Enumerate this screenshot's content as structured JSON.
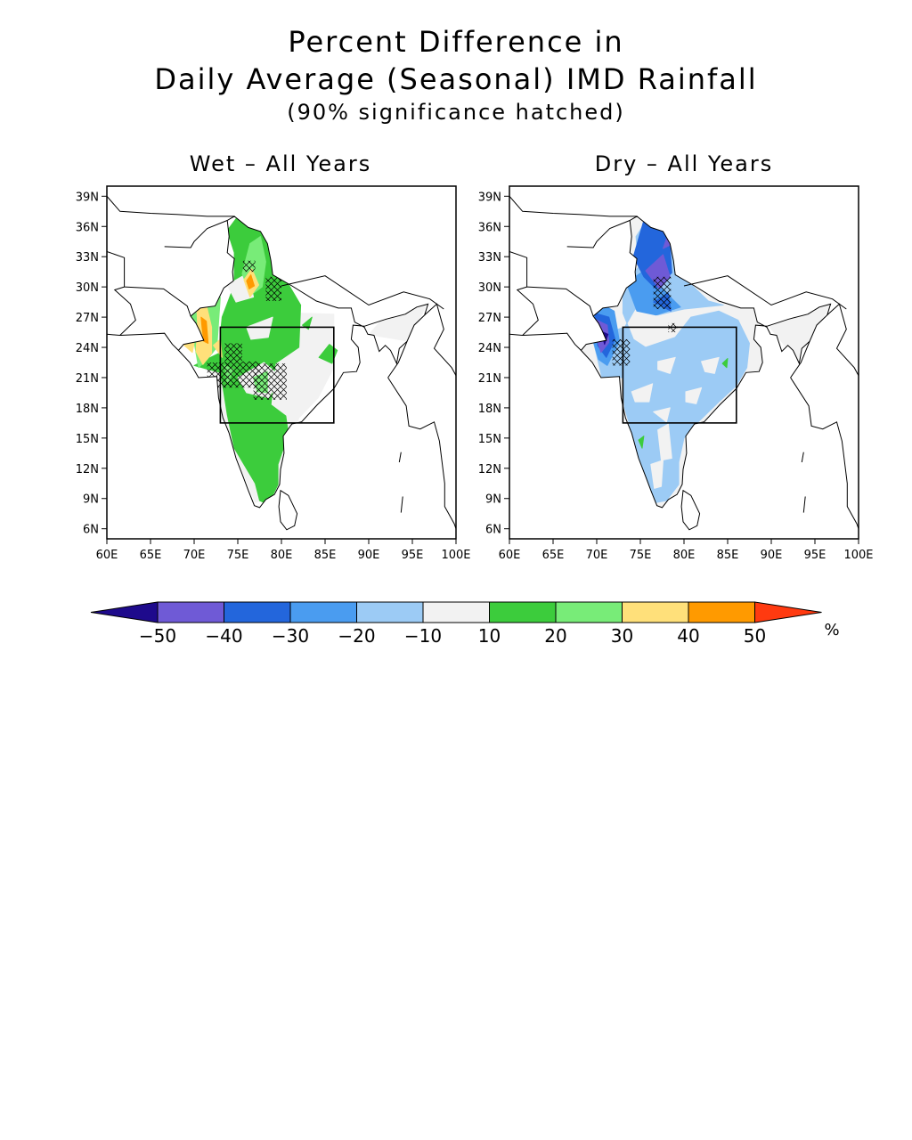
{
  "title": {
    "line1": "Percent Difference in",
    "line2": "Daily Average (Seasonal) IMD Rainfall",
    "line3": "(90% significance hatched)"
  },
  "panels": [
    {
      "title": "Wet – All Years",
      "pattern": "wet"
    },
    {
      "title": "Dry – All Years",
      "pattern": "dry"
    }
  ],
  "axes": {
    "lat_ticks": [
      "39N",
      "36N",
      "33N",
      "30N",
      "27N",
      "24N",
      "21N",
      "18N",
      "15N",
      "12N",
      "9N",
      "6N"
    ],
    "lon_ticks": [
      "60E",
      "65E",
      "70E",
      "75E",
      "80E",
      "85E",
      "90E",
      "95E",
      "100E"
    ],
    "lat_range": [
      5,
      40
    ],
    "lon_range": [
      60,
      100
    ]
  },
  "colorbar": {
    "unit": "%",
    "tick_labels": [
      "−50",
      "−40",
      "−30",
      "−20",
      "−10",
      "10",
      "20",
      "30",
      "40",
      "50"
    ],
    "colors": [
      "#1e0a8c",
      "#6f5ad6",
      "#2366dc",
      "#4a9cf0",
      "#9ccbf5",
      "#f2f2f2",
      "#3ccc3c",
      "#78ec78",
      "#ffe07a",
      "#ff9a00",
      "#ff3a10"
    ]
  },
  "region_box": {
    "lon": [
      73,
      86
    ],
    "lat": [
      16.5,
      26
    ]
  }
}
